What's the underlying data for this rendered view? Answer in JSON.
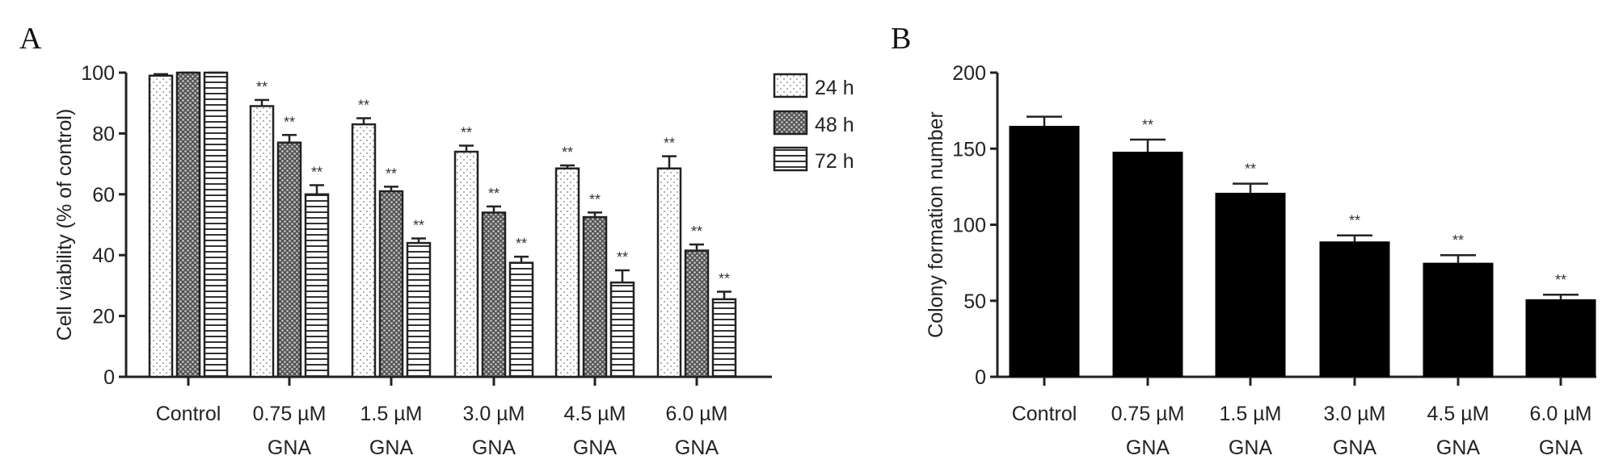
{
  "chart_data": [
    {
      "panel_label": "A",
      "type": "bar",
      "ylabel": "Cell viability (% of control)",
      "ylim": [
        0,
        100
      ],
      "yticks": [
        0,
        20,
        40,
        60,
        80,
        100
      ],
      "categories": [
        [
          "Control"
        ],
        [
          "0.75 µM",
          "GNA"
        ],
        [
          "1.5 µM",
          "GNA"
        ],
        [
          "3.0 µM",
          "GNA"
        ],
        [
          "4.5 µM",
          "GNA"
        ],
        [
          "6.0 µM",
          "GNA"
        ]
      ],
      "legend_position": "top-right",
      "series": [
        {
          "name": "24 h",
          "pattern": "dots",
          "values": [
            99,
            89,
            83,
            74,
            68.5,
            68.5
          ],
          "errors": [
            0.5,
            2,
            2,
            2,
            1,
            4
          ],
          "significance": [
            "",
            "**",
            "**",
            "**",
            "**",
            "**"
          ]
        },
        {
          "name": "48 h",
          "pattern": "crosshatch",
          "values": [
            100,
            77,
            61,
            54,
            52.5,
            41.5
          ],
          "errors": [
            0,
            2.5,
            1.5,
            2,
            1.5,
            2
          ],
          "significance": [
            "",
            "**",
            "**",
            "**",
            "**",
            "**"
          ]
        },
        {
          "name": "72 h",
          "pattern": "horizontal-lines",
          "values": [
            100,
            60,
            44,
            37.5,
            31,
            25.5
          ],
          "errors": [
            0,
            3,
            1.5,
            2,
            4,
            2.5
          ],
          "significance": [
            "",
            "**",
            "**",
            "**",
            "**",
            "**"
          ]
        }
      ]
    },
    {
      "panel_label": "B",
      "type": "bar",
      "ylabel": "Colony formation number",
      "ylim": [
        0,
        200
      ],
      "yticks": [
        0,
        50,
        100,
        150,
        200
      ],
      "categories": [
        [
          "Control"
        ],
        [
          "0.75 µM",
          "GNA"
        ],
        [
          "1.5 µM",
          "GNA"
        ],
        [
          "3.0 µM",
          "GNA"
        ],
        [
          "4.5 µM",
          "GNA"
        ],
        [
          "6.0 µM",
          "GNA"
        ]
      ],
      "bar_color": "#000000",
      "values": [
        165,
        148,
        121,
        89,
        75,
        51
      ],
      "errors": [
        6,
        8,
        6,
        4,
        5,
        3
      ],
      "significance": [
        "",
        "**",
        "**",
        "**",
        "**",
        "**"
      ]
    }
  ]
}
